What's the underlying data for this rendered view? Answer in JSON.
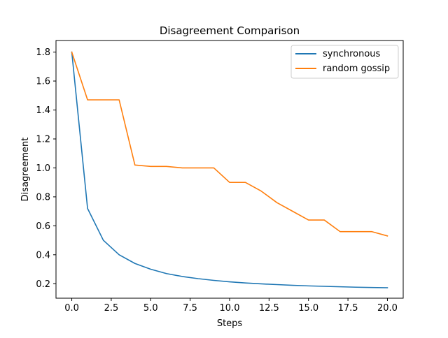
{
  "chart_data": {
    "type": "line",
    "title": "Disagreement Comparison",
    "xlabel": "Steps",
    "ylabel": "Disagreement",
    "xlim": [
      -1.0,
      21.0
    ],
    "ylim": [
      0.1,
      1.88
    ],
    "x_ticks": [
      0.0,
      2.5,
      5.0,
      7.5,
      10.0,
      12.5,
      15.0,
      17.5,
      20.0
    ],
    "x_tick_labels": [
      "0.0",
      "2.5",
      "5.0",
      "7.5",
      "10.0",
      "12.5",
      "15.0",
      "17.5",
      "20.0"
    ],
    "y_ticks": [
      0.2,
      0.4,
      0.6,
      0.8,
      1.0,
      1.2,
      1.4,
      1.6,
      1.8
    ],
    "y_tick_labels": [
      "0.2",
      "0.4",
      "0.6",
      "0.8",
      "1.0",
      "1.2",
      "1.4",
      "1.6",
      "1.8"
    ],
    "grid": false,
    "legend_position": "top-right",
    "x": [
      0,
      1,
      2,
      3,
      4,
      5,
      6,
      7,
      8,
      9,
      10,
      11,
      12,
      13,
      14,
      15,
      16,
      17,
      18,
      19,
      20
    ],
    "series": [
      {
        "name": "synchronous",
        "color": "#1f77b4",
        "values": [
          1.8,
          0.72,
          0.5,
          0.4,
          0.34,
          0.3,
          0.27,
          0.25,
          0.235,
          0.223,
          0.213,
          0.205,
          0.199,
          0.194,
          0.189,
          0.185,
          0.182,
          0.179,
          0.176,
          0.174,
          0.172
        ]
      },
      {
        "name": "random gossip",
        "color": "#ff7f0e",
        "values": [
          1.8,
          1.47,
          1.47,
          1.47,
          1.02,
          1.01,
          1.01,
          1.0,
          1.0,
          1.0,
          0.9,
          0.9,
          0.84,
          0.76,
          0.7,
          0.64,
          0.64,
          0.56,
          0.56,
          0.56,
          0.53
        ]
      }
    ]
  }
}
